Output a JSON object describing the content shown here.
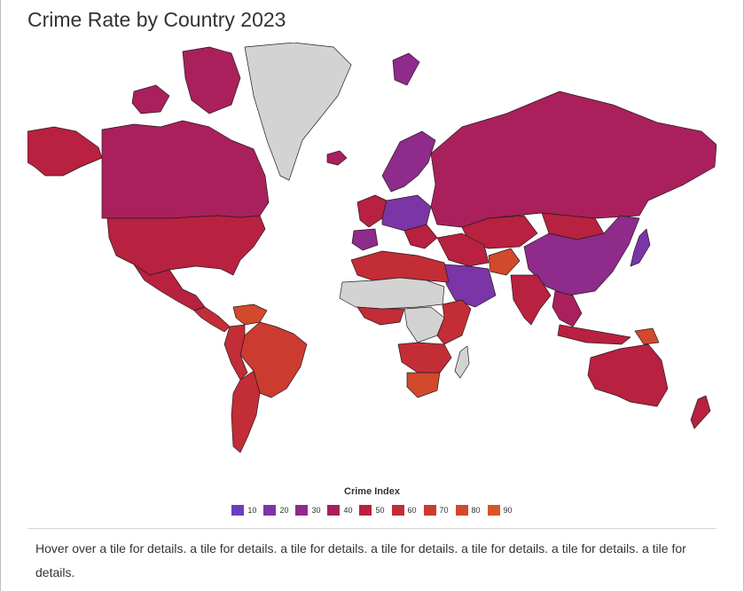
{
  "title": "Crime Rate by Country 2023",
  "legend": {
    "title": "Crime Index",
    "items": [
      {
        "label": "10",
        "color": "#6a3fbf"
      },
      {
        "label": "20",
        "color": "#7b35a6"
      },
      {
        "label": "30",
        "color": "#8e2b8b"
      },
      {
        "label": "40",
        "color": "#a9205c"
      },
      {
        "label": "50",
        "color": "#b8213f"
      },
      {
        "label": "60",
        "color": "#c22d36"
      },
      {
        "label": "70",
        "color": "#cc3b30"
      },
      {
        "label": "80",
        "color": "#d2492c"
      },
      {
        "label": "90",
        "color": "#d75428"
      }
    ]
  },
  "map": {
    "no_data_color": "#d3d3d3",
    "ocean_color": "#ffffff",
    "regions": [
      {
        "name": "Canada",
        "color": "#a9205c"
      },
      {
        "name": "United States",
        "color": "#b8213f"
      },
      {
        "name": "Alaska",
        "color": "#b8213f"
      },
      {
        "name": "Greenland",
        "color": "#d3d3d3"
      },
      {
        "name": "Arctic islands",
        "color": "#a9205c"
      },
      {
        "name": "Mexico",
        "color": "#b8213f"
      },
      {
        "name": "Central America",
        "color": "#c22d36"
      },
      {
        "name": "Venezuela",
        "color": "#d2492c"
      },
      {
        "name": "Brazil",
        "color": "#cc3b30"
      },
      {
        "name": "Andes",
        "color": "#c22d36"
      },
      {
        "name": "Southern Cone",
        "color": "#c22d36"
      },
      {
        "name": "Iceland",
        "color": "#a9205c"
      },
      {
        "name": "Scandinavia",
        "color": "#8e2b8b"
      },
      {
        "name": "Western Europe",
        "color": "#b8213f"
      },
      {
        "name": "Central Europe",
        "color": "#7b35a6"
      },
      {
        "name": "Iberia",
        "color": "#8e2b8b"
      },
      {
        "name": "Russia",
        "color": "#a9205c"
      },
      {
        "name": "Svalbard",
        "color": "#8e2b8b"
      },
      {
        "name": "Kazakhstan",
        "color": "#b8213f"
      },
      {
        "name": "Mongolia",
        "color": "#b8213f"
      },
      {
        "name": "China",
        "color": "#8e2b8b"
      },
      {
        "name": "Japan",
        "color": "#7b35a6"
      },
      {
        "name": "Saudi Arabia",
        "color": "#7b35a6"
      },
      {
        "name": "Middle East",
        "color": "#b8213f"
      },
      {
        "name": "Afghanistan",
        "color": "#d2492c"
      },
      {
        "name": "India",
        "color": "#b8213f"
      },
      {
        "name": "Southeast Asia",
        "color": "#a9205c"
      },
      {
        "name": "Indonesia",
        "color": "#b8213f"
      },
      {
        "name": "Papua New Guinea",
        "color": "#d2492c"
      },
      {
        "name": "Australia",
        "color": "#b8213f"
      },
      {
        "name": "New Zealand",
        "color": "#b8213f"
      },
      {
        "name": "North Africa",
        "color": "#c22d36"
      },
      {
        "name": "Sahel",
        "color": "#d3d3d3"
      },
      {
        "name": "West Africa",
        "color": "#c22d36"
      },
      {
        "name": "Central Africa",
        "color": "#d3d3d3"
      },
      {
        "name": "East Africa",
        "color": "#c22d36"
      },
      {
        "name": "Southern Africa",
        "color": "#c22d36"
      },
      {
        "name": "South Africa",
        "color": "#d2492c"
      },
      {
        "name": "Madagascar",
        "color": "#d3d3d3"
      }
    ]
  },
  "footer": {
    "text": "Hover over a tile for details. a tile for details. a tile for details. a tile for details. a tile for details. a tile for details. a tile for details."
  }
}
